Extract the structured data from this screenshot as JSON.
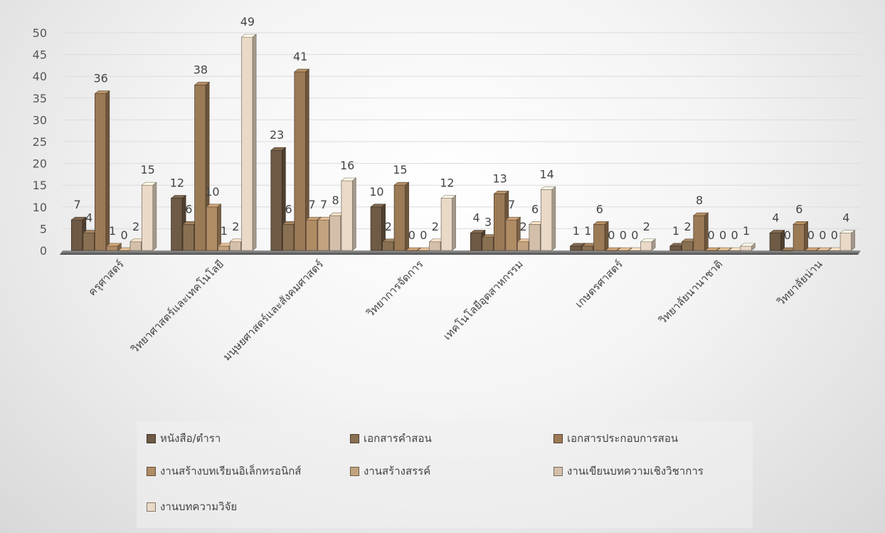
{
  "chart_data": {
    "type": "bar",
    "title": "",
    "xlabel": "",
    "ylabel": "",
    "ylim": [
      0,
      50
    ],
    "yticks": [
      "0",
      "5",
      "10",
      "15",
      "20",
      "25",
      "30",
      "35",
      "40",
      "45",
      "50"
    ],
    "grid": true,
    "legend_position": "bottom",
    "categories": [
      "ครุศาสตร์",
      "วิทยาศาสตร์และเทคโนโลยี",
      "มนุษยศาสตร์และสังคมศาสตร์",
      "วิทยาการจัดการ",
      "เทคโนโลยีอุตสาหกรรม",
      "เกษตรศาสตร์",
      "วิทยาลัยนานาชาติ",
      "วิทยาลัยน่าน"
    ],
    "series": [
      {
        "name": "หนังสือ/ตำรา",
        "color": "#6e5a45",
        "values": [
          7,
          12,
          23,
          10,
          4,
          1,
          1,
          4
        ]
      },
      {
        "name": "เอกสารคำสอน",
        "color": "#8a7052",
        "values": [
          4,
          6,
          6,
          2,
          3,
          1,
          2,
          0
        ]
      },
      {
        "name": "เอกสารประกอบการสอน",
        "color": "#9b7a56",
        "values": [
          36,
          38,
          41,
          15,
          13,
          6,
          8,
          6
        ]
      },
      {
        "name": "งานสร้างบทเรียนอิเล็กทรอนิกส์",
        "color": "#b08c65",
        "values": [
          1,
          10,
          7,
          0,
          7,
          0,
          0,
          0
        ]
      },
      {
        "name": "งานสร้างสรรค์",
        "color": "#c3a37f",
        "values": [
          0,
          1,
          7,
          0,
          2,
          0,
          0,
          0
        ]
      },
      {
        "name": "งานเขียนบทความเชิงวิชาการ",
        "color": "#d4c0aa",
        "values": [
          2,
          2,
          8,
          2,
          6,
          0,
          0,
          0
        ]
      },
      {
        "name": "งานบทความวิจัย",
        "color": "#ead9c6",
        "values": [
          15,
          49,
          16,
          12,
          14,
          2,
          1,
          4
        ]
      }
    ]
  }
}
